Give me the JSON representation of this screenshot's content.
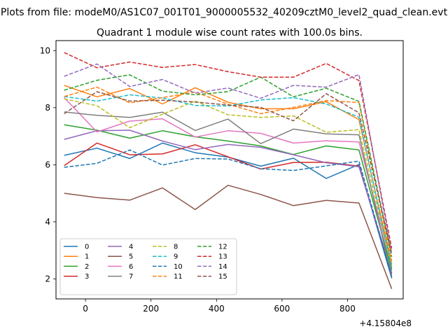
{
  "suptitle": "Plots from file: modeM0/AS1C07_001T01_9000005532_40209cztM0_level2_quad_clean.evt",
  "chart_data": {
    "type": "line",
    "title": "Quadrant 1 module wise count rates with 100.0s bins.",
    "xlabel": "",
    "ylabel": "",
    "x_offset_label": "+4.15804e8",
    "xlim": [
      -90,
      970
    ],
    "ylim": [
      1.3,
      10.35
    ],
    "x_ticks": [
      0,
      200,
      400,
      600,
      800
    ],
    "y_ticks": [
      2,
      4,
      6,
      8,
      10
    ],
    "legend_position": "lower-left",
    "x": [
      -65,
      35,
      135,
      235,
      335,
      435,
      535,
      635,
      735,
      835,
      935
    ],
    "series": [
      {
        "name": "0",
        "color": "#1f77b4",
        "dash": "solid",
        "values": [
          6.33,
          6.58,
          6.22,
          6.76,
          6.42,
          6.27,
          5.95,
          6.23,
          5.52,
          6.01,
          2.02
        ]
      },
      {
        "name": "1",
        "color": "#ff7f0e",
        "dash": "solid",
        "values": [
          8.78,
          8.38,
          8.67,
          8.13,
          8.7,
          8.19,
          7.96,
          7.96,
          8.21,
          7.58,
          2.52
        ]
      },
      {
        "name": "2",
        "color": "#2ca02c",
        "dash": "solid",
        "values": [
          7.4,
          7.21,
          6.93,
          7.19,
          6.98,
          6.83,
          6.66,
          6.36,
          6.66,
          6.52,
          2.32
        ]
      },
      {
        "name": "3",
        "color": "#d62728",
        "dash": "solid",
        "values": [
          5.97,
          6.76,
          6.35,
          6.38,
          6.7,
          6.28,
          5.85,
          6.08,
          6.09,
          5.95,
          2.18
        ]
      },
      {
        "name": "4",
        "color": "#9467bd",
        "dash": "solid",
        "values": [
          6.89,
          7.19,
          7.21,
          6.83,
          6.53,
          6.71,
          6.61,
          6.35,
          6.07,
          5.93,
          2.22
        ]
      },
      {
        "name": "5",
        "color": "#8c564b",
        "dash": "solid",
        "values": [
          5.0,
          4.85,
          4.76,
          5.19,
          4.43,
          5.28,
          4.96,
          4.57,
          4.75,
          4.66,
          1.65
        ]
      },
      {
        "name": "6",
        "color": "#e377c2",
        "dash": "solid",
        "values": [
          8.35,
          7.15,
          7.53,
          7.61,
          6.97,
          7.19,
          7.1,
          6.76,
          6.84,
          6.8,
          2.46
        ]
      },
      {
        "name": "7",
        "color": "#7f7f7f",
        "dash": "solid",
        "values": [
          7.85,
          7.73,
          7.66,
          7.84,
          7.2,
          7.6,
          6.74,
          7.25,
          7.08,
          7.05,
          2.06
        ]
      },
      {
        "name": "8",
        "color": "#bcbd22",
        "dash": "dashed",
        "values": [
          8.31,
          8.07,
          7.3,
          7.77,
          8.23,
          7.75,
          7.66,
          7.71,
          7.14,
          7.23,
          2.42
        ]
      },
      {
        "name": "9",
        "color": "#17becf",
        "dash": "dashed",
        "values": [
          8.39,
          8.23,
          8.45,
          8.34,
          8.08,
          8.06,
          8.27,
          8.35,
          8.13,
          7.67,
          2.39
        ]
      },
      {
        "name": "10",
        "color": "#1f77b4",
        "dash": "dashed",
        "values": [
          5.91,
          6.05,
          6.52,
          5.99,
          6.22,
          6.2,
          5.86,
          5.8,
          5.96,
          6.13,
          2.08
        ]
      },
      {
        "name": "11",
        "color": "#ff7f0e",
        "dash": "dashed",
        "values": [
          8.39,
          8.72,
          8.17,
          8.35,
          8.55,
          8.12,
          7.79,
          8.01,
          8.25,
          8.18,
          2.62
        ]
      },
      {
        "name": "12",
        "color": "#2ca02c",
        "dash": "dashed",
        "values": [
          8.61,
          8.96,
          9.15,
          8.58,
          8.45,
          8.56,
          9.07,
          8.38,
          8.68,
          8.22,
          2.77
        ]
      },
      {
        "name": "13",
        "color": "#d62728",
        "dash": "dashed",
        "values": [
          9.93,
          9.4,
          9.6,
          9.41,
          9.51,
          9.26,
          9.07,
          9.07,
          9.55,
          8.95,
          3.07
        ]
      },
      {
        "name": "14",
        "color": "#9467bd",
        "dash": "dashed",
        "values": [
          9.1,
          9.53,
          8.74,
          8.99,
          8.51,
          8.69,
          8.33,
          8.78,
          8.72,
          9.16,
          2.86
        ]
      },
      {
        "name": "15",
        "color": "#8c564b",
        "dash": "dashed",
        "values": [
          7.79,
          8.56,
          8.23,
          8.26,
          8.2,
          8.09,
          8.01,
          7.54,
          8.49,
          7.82,
          2.91
        ]
      }
    ]
  }
}
